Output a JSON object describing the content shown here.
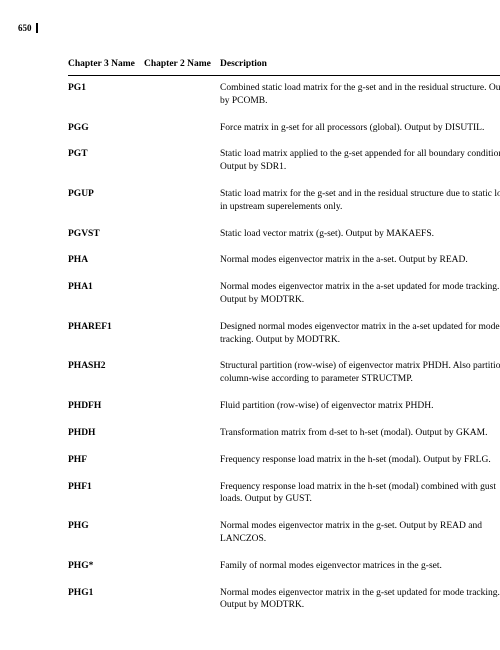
{
  "pageNumber": "650",
  "columns": {
    "c1": "Chapter 3\nName",
    "c2": "Chapter 2\nName",
    "c3": "Description"
  },
  "rows": [
    {
      "name": "PG1",
      "desc": "Combined static load matrix for the g-set and in the residual structure. Output by PCOMB."
    },
    {
      "name": "PGG",
      "desc": "Force matrix in g-set for all processors (global). Output by DISUTIL."
    },
    {
      "name": "PGT",
      "desc": "Static load matrix applied to the g-set appended for all boundary conditions. Output by SDR1."
    },
    {
      "name": "PGUP",
      "desc": "Static load matrix for the g-set and in the residual structure due to static loads in upstream superelements only."
    },
    {
      "name": "PGVST",
      "desc": "Static load vector matrix (g-set). Output by MAKAEFS."
    },
    {
      "name": "PHA",
      "desc": "Normal modes eigenvector matrix in the a-set. Output by READ."
    },
    {
      "name": "PHA1",
      "desc": "Normal modes eigenvector matrix in the a-set updated for mode tracking. Output by MODTRK."
    },
    {
      "name": "PHAREF1",
      "desc": "Designed normal modes eigenvector matrix in the a-set updated for mode tracking. Output by MODTRK."
    },
    {
      "name": "PHASH2",
      "desc": "Structural partition (row-wise) of eigenvector matrix PHDH. Also partitioned column-wise according to parameter STRUCTMP."
    },
    {
      "name": "PHDFH",
      "desc": "Fluid partition (row-wise) of eigenvector matrix PHDH."
    },
    {
      "name": "PHDH",
      "desc": "Transformation matrix from d-set to h-set (modal). Output by GKAM."
    },
    {
      "name": "PHF",
      "desc": "Frequency response load matrix in the h-set (modal). Output by FRLG."
    },
    {
      "name": "PHF1",
      "desc": "Frequency response load matrix in the h-set (modal) combined with gust loads. Output by GUST."
    },
    {
      "name": "PHG",
      "desc": "Normal modes eigenvector matrix in the g-set. Output by READ and LANCZOS."
    },
    {
      "name": "PHG*",
      "desc": "Family of normal modes eigenvector matrices in the g-set."
    },
    {
      "name": "PHG1",
      "desc": "Normal modes eigenvector matrix in the g-set updated for mode tracking. Output by MODTRK."
    }
  ]
}
